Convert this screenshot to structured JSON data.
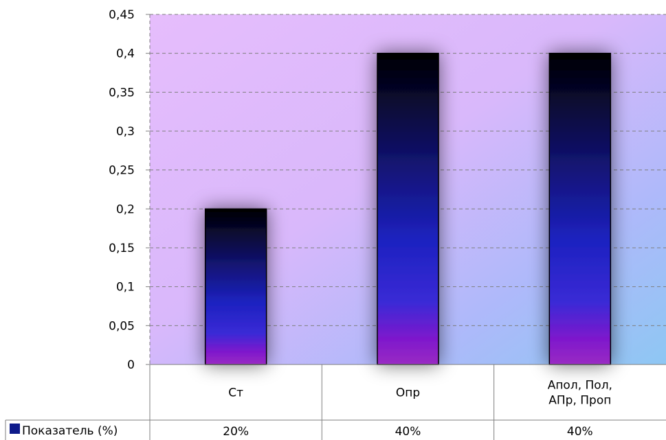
{
  "chart_data": {
    "type": "bar",
    "categories": [
      "Ст",
      "Опр",
      "Апол, Пол, АПр, Проп"
    ],
    "category_lines": [
      [
        "Ст"
      ],
      [
        "Опр"
      ],
      [
        "Апол, Пол,",
        "АПр, Проп"
      ]
    ],
    "series": [
      {
        "name": "Показатель (%)",
        "values": [
          0.2,
          0.4,
          0.4
        ]
      }
    ],
    "data_table_values": [
      "20%",
      "40%",
      "40%"
    ],
    "y_ticks": [
      "0",
      "0,05",
      "0,1",
      "0,15",
      "0,2",
      "0,25",
      "0,3",
      "0,35",
      "0,4",
      "0,45"
    ],
    "ylim": [
      0,
      0.45
    ],
    "grid": true,
    "legend": "data-table",
    "title": "",
    "xlabel": "",
    "ylabel": "",
    "colors": {
      "plot_bg_top": "#e4b9fb",
      "plot_bg_bottom_right": "#8fc4f4",
      "bar_top": "#000000",
      "bar_mid": "#1c22c0",
      "bar_bottom": "#8a1ec7",
      "legend_key": "#0d1a8a",
      "grid": "#7f7f7f"
    }
  }
}
